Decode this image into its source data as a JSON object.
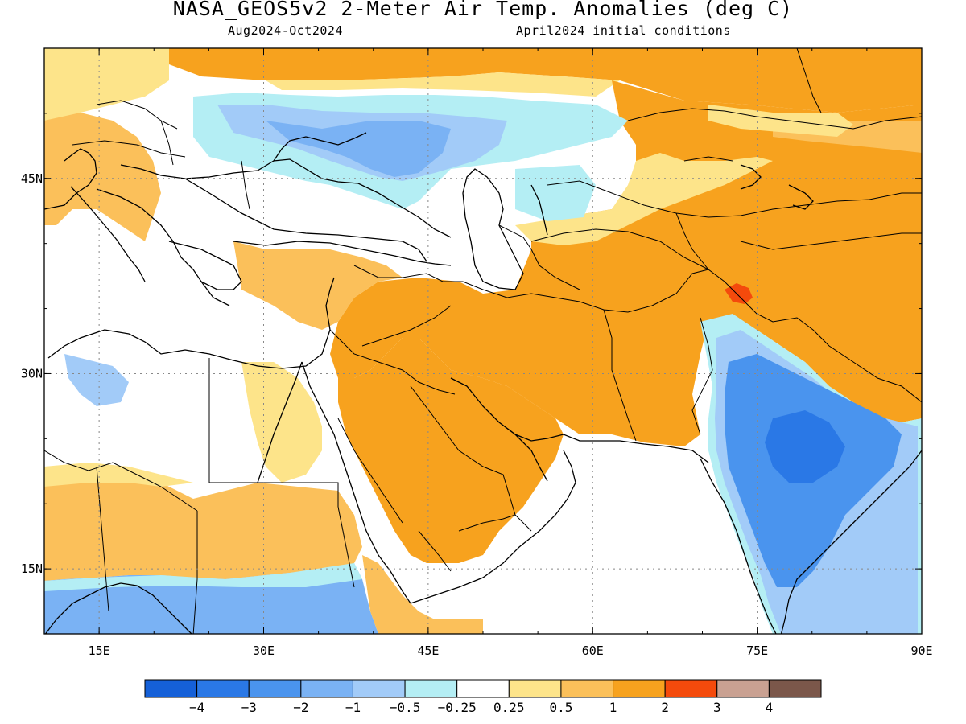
{
  "title": "NASA_GEOS5v2 2-Meter Air Temp. Anomalies (deg C)",
  "subtitle_left": "Aug2024-Oct2024",
  "subtitle_right": "April2024 initial conditions",
  "map": {
    "lon_range": [
      10,
      90
    ],
    "lat_range": [
      10,
      55
    ],
    "lon_ticks": [
      "15E",
      "30E",
      "45E",
      "60E",
      "75E",
      "90E"
    ],
    "lat_ticks": [
      "45N",
      "30N",
      "15N"
    ],
    "grid": true
  },
  "colorbar": {
    "colors": [
      "#1560d8",
      "#2a78e6",
      "#4a94ee",
      "#7ab2f4",
      "#a2cbf8",
      "#b4eef4",
      "#ffffff",
      "#fde48a",
      "#fbc05a",
      "#f7a21e",
      "#f44a0c",
      "#c9a192",
      "#7b574a"
    ],
    "labels": [
      "-4",
      "-3",
      "-2",
      "-1",
      "-0.5",
      "-0.25",
      "0.25",
      "0.5",
      "1",
      "2",
      "3",
      "4"
    ]
  },
  "palette": {
    "orange": "#f7a21e",
    "light_orange": "#fbc05a",
    "yellow": "#fde48a",
    "red": "#f44a0c",
    "blue_deep": "#2a78e6",
    "blue": "#4a94ee",
    "blue_light": "#7ab2f4",
    "blue_pale": "#a2cbf8",
    "cyan": "#b4eef4"
  }
}
